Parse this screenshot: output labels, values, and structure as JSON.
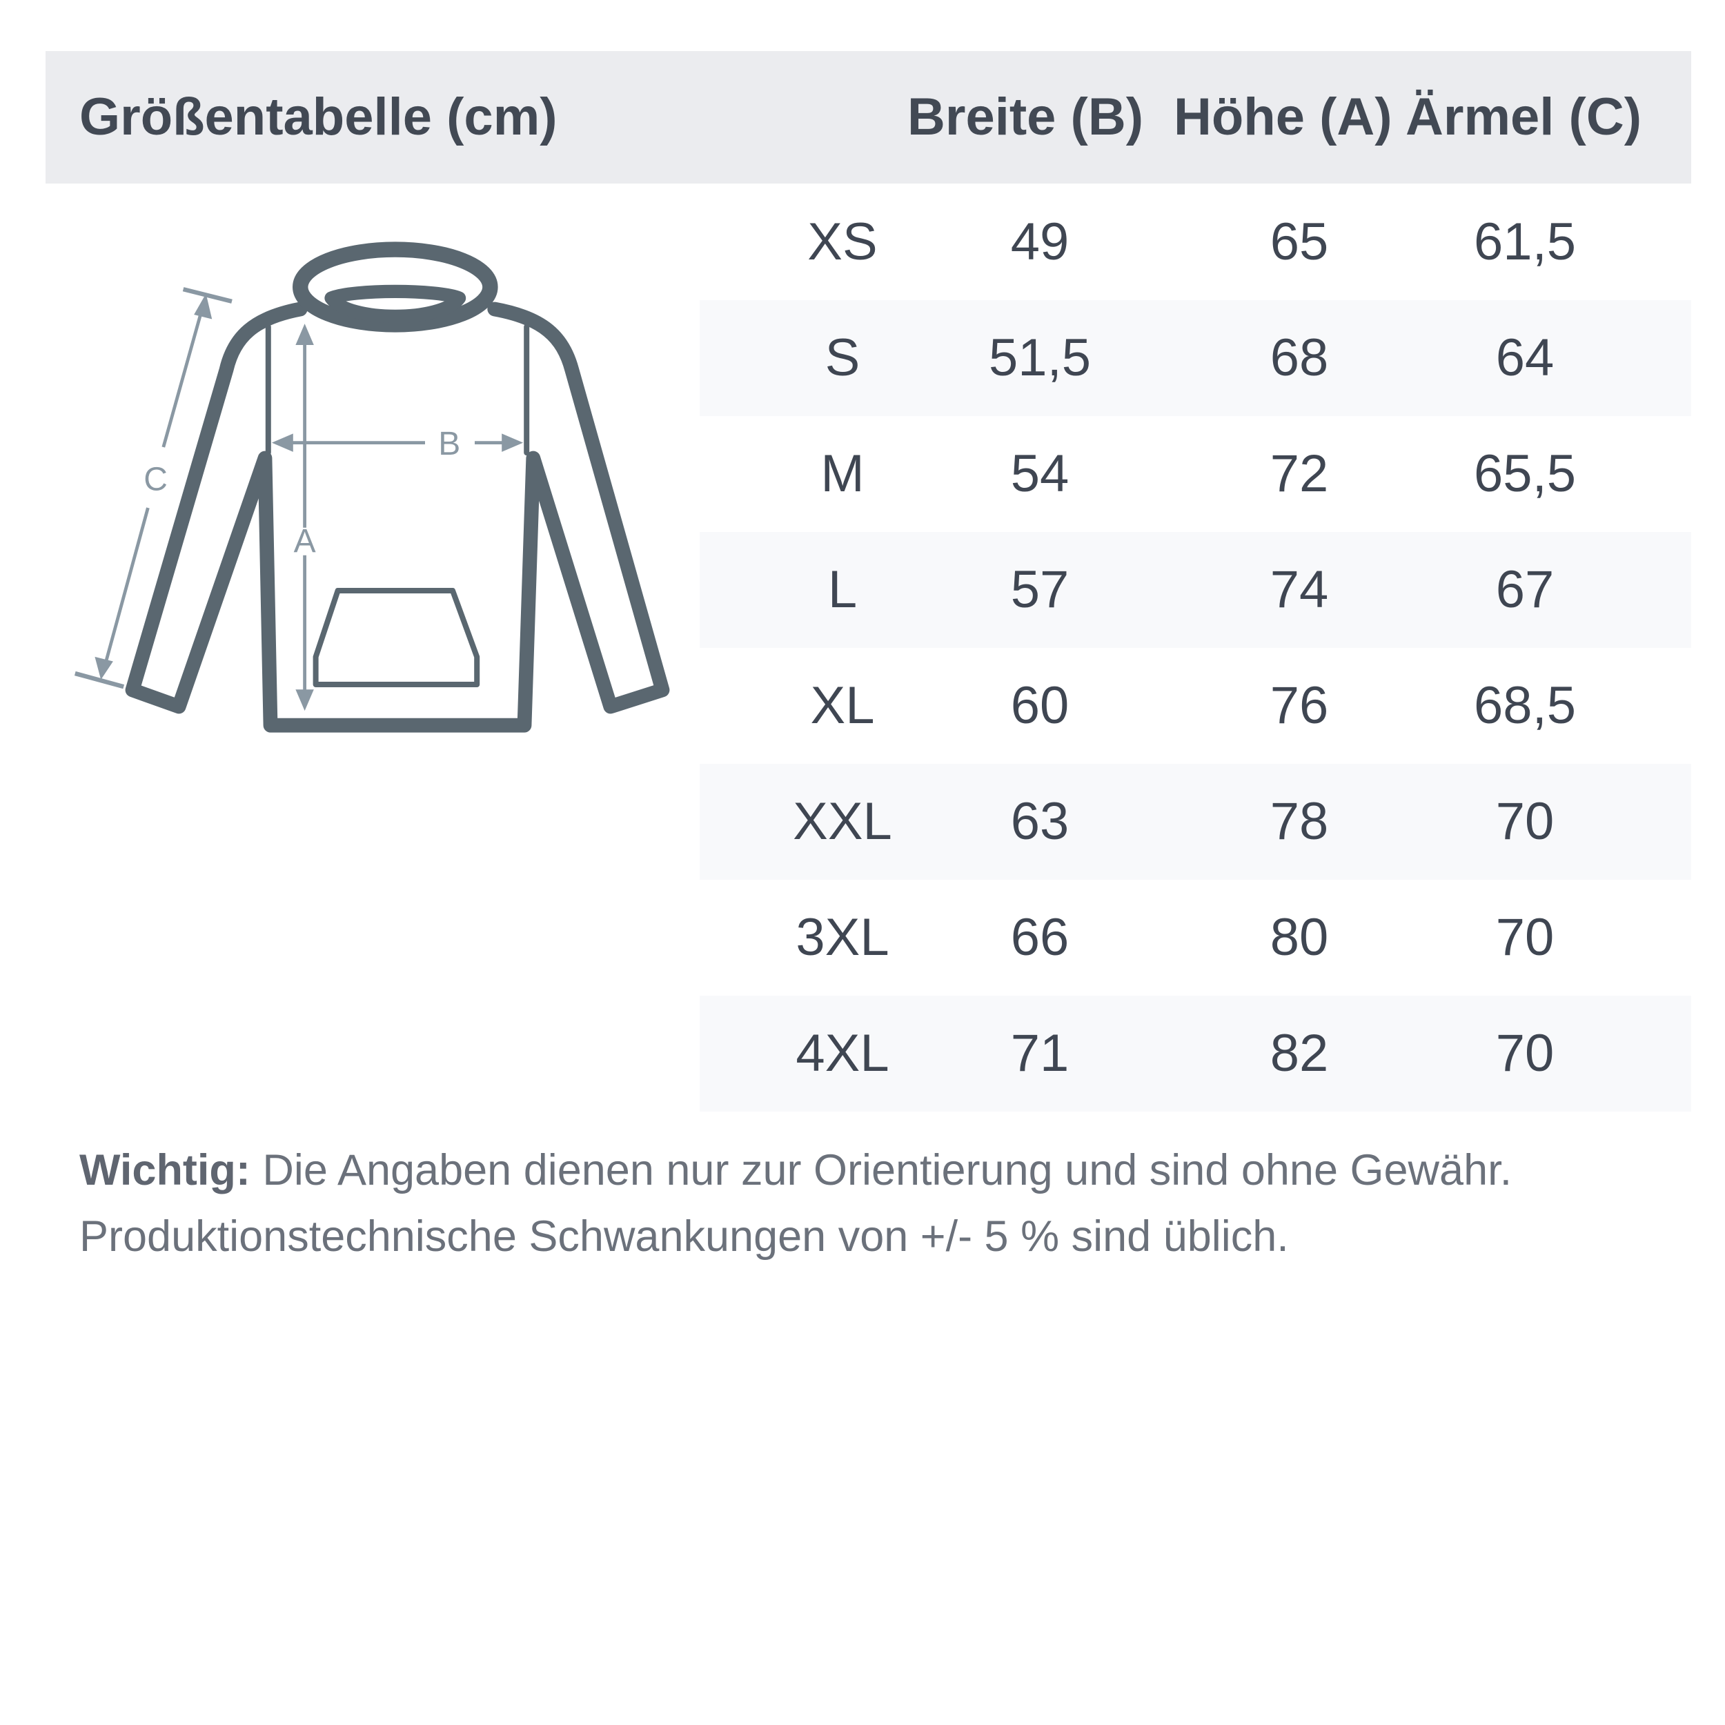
{
  "header": {
    "title": "Größentabelle (cm)",
    "columns": [
      "Breite (B)",
      "Höhe (A)",
      "Ärmel (C)"
    ]
  },
  "rows": [
    {
      "size": "XS",
      "breite": "49",
      "hoehe": "65",
      "aermel": "61,5"
    },
    {
      "size": "S",
      "breite": "51,5",
      "hoehe": "68",
      "aermel": "64"
    },
    {
      "size": "M",
      "breite": "54",
      "hoehe": "72",
      "aermel": "65,5"
    },
    {
      "size": "L",
      "breite": "57",
      "hoehe": "74",
      "aermel": "67"
    },
    {
      "size": "XL",
      "breite": "60",
      "hoehe": "76",
      "aermel": "68,5"
    },
    {
      "size": "XXL",
      "breite": "63",
      "hoehe": "78",
      "aermel": "70"
    },
    {
      "size": "3XL",
      "breite": "66",
      "hoehe": "80",
      "aermel": "70"
    },
    {
      "size": "4XL",
      "breite": "71",
      "hoehe": "82",
      "aermel": "70"
    }
  ],
  "diagram": {
    "label_a": "A",
    "label_b": "B",
    "label_c": "C",
    "icon": "hoodie-icon"
  },
  "note": {
    "bold": "Wichtig:",
    "line1": " Die Angaben dienen nur zur Orientierung und sind ohne Gewähr.",
    "line2": "Produktionstechnische Schwankungen von +/- 5 % sind üblich."
  },
  "colors": {
    "header_bg": "#ebecef",
    "row_shade": "#f8f9fb",
    "outline": "#5a6770",
    "arrow": "#8a98a3"
  }
}
